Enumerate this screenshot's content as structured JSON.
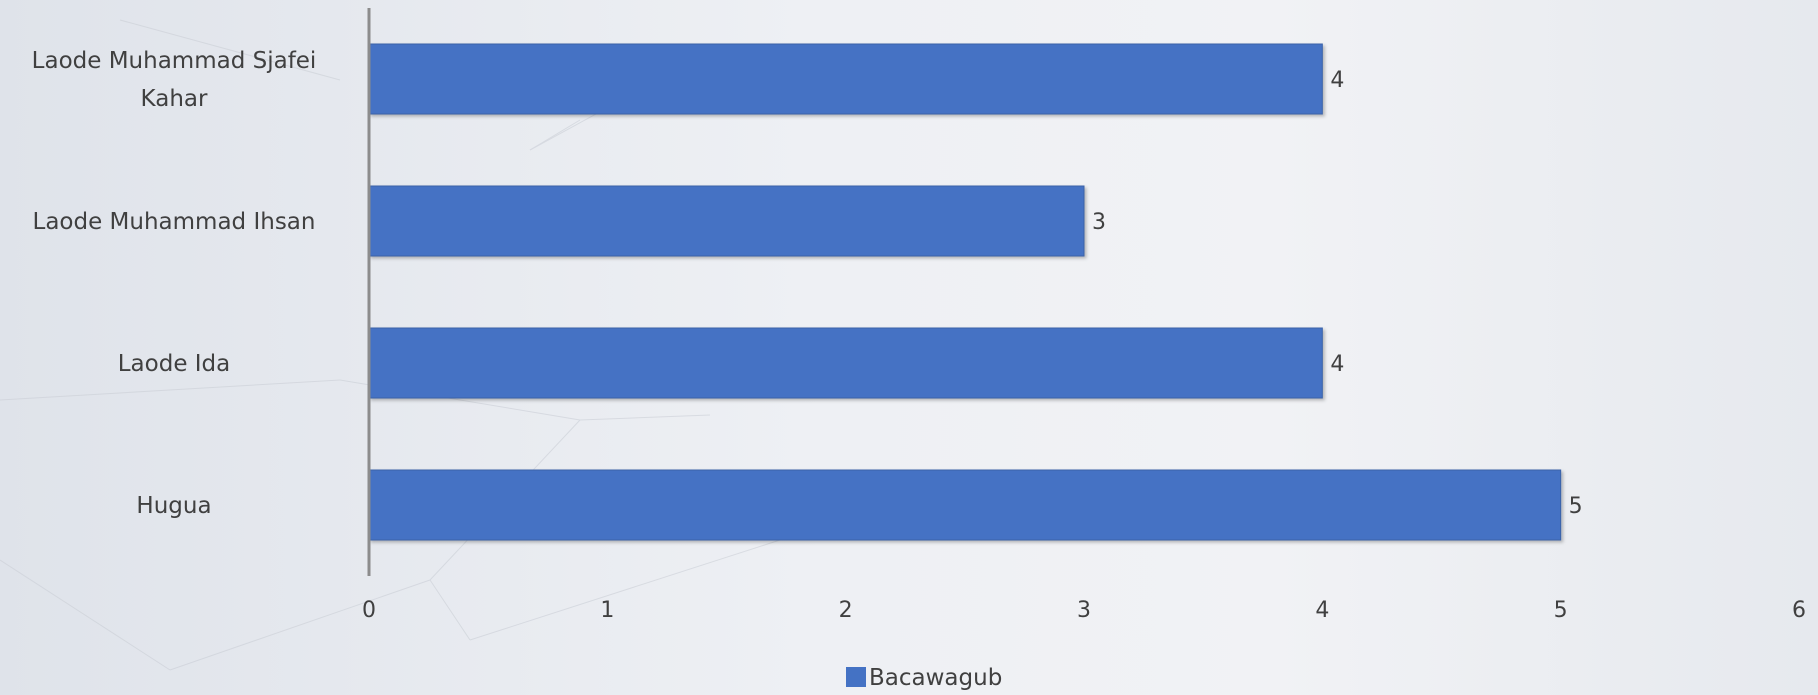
{
  "chart_data": {
    "type": "bar",
    "orientation": "horizontal",
    "categories": [
      "Laode Muhammad Sjafei Kahar",
      "Laode Muhammad Ihsan",
      "Laode Ida",
      "Hugua"
    ],
    "category_lines": [
      [
        "Laode Muhammad Sjafei",
        "Kahar"
      ],
      [
        "Laode Muhammad Ihsan"
      ],
      [
        "Laode Ida"
      ],
      [
        "Hugua"
      ]
    ],
    "series": [
      {
        "name": "Bacawagub",
        "values": [
          4,
          3,
          4,
          5
        ],
        "color": "#4472c4"
      }
    ],
    "xlim": [
      0,
      6
    ],
    "xticks": [
      "0",
      "1",
      "2",
      "3",
      "4",
      "5",
      "6"
    ],
    "grid": false,
    "legend": "bottom"
  }
}
